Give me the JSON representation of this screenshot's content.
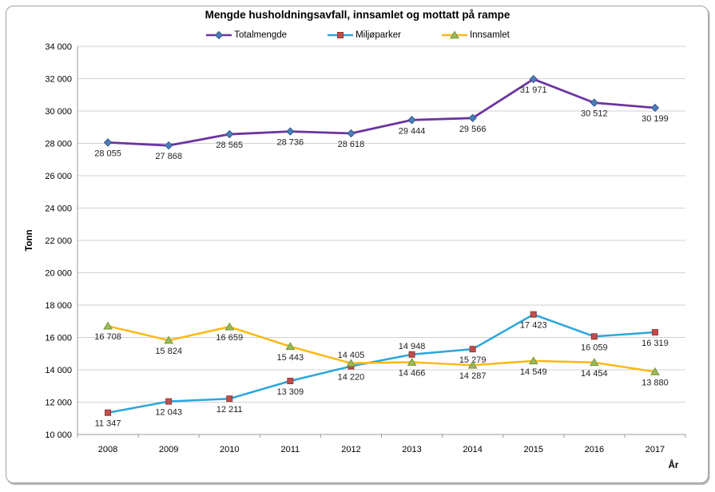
{
  "chart_data": {
    "type": "line",
    "title": "Mengde husholdningsavfall, innsamlet og mottatt på rampe",
    "ylabel": "Tonn",
    "xlabel": "År",
    "categories": [
      "2008",
      "2009",
      "2010",
      "2011",
      "2012",
      "2013",
      "2014",
      "2015",
      "2016",
      "2017"
    ],
    "ylim": [
      10000,
      34000
    ],
    "ytick_step": 2000,
    "grid": true,
    "legend_position": "top",
    "number_format": "space-thousands",
    "colors": {
      "gridline": "#d1d1d1",
      "axis": "#9b9b9b",
      "text": "#000000",
      "data_label": "#1f1f1f",
      "frame_border": "#a3a3a3"
    },
    "series": [
      {
        "name": "Totalmengde",
        "line_color": "#6B35A0",
        "marker": "diamond",
        "marker_color": "#4A7EBB",
        "marker_edge": "#38598C",
        "values": [
          28055,
          27868,
          28565,
          28736,
          28618,
          29444,
          29566,
          31971,
          30512,
          30199
        ],
        "label_side": [
          "below",
          "below",
          "below",
          "below",
          "below",
          "below",
          "below",
          "below",
          "below",
          "below"
        ]
      },
      {
        "name": "Miljøparker",
        "line_color": "#2BA6DE",
        "marker": "square",
        "marker_color": "#C0504D",
        "marker_edge": "#943634",
        "values": [
          11347,
          12043,
          12211,
          13309,
          14220,
          14948,
          15279,
          17423,
          16059,
          16319
        ],
        "label_side": [
          "below",
          "below",
          "below",
          "below",
          "below",
          "above",
          "below",
          "below",
          "below",
          "below"
        ]
      },
      {
        "name": "Innsamlet",
        "line_color": "#FCB813",
        "marker": "triangle",
        "marker_color": "#9BBB59",
        "marker_edge": "#76923C",
        "values": [
          16708,
          15824,
          16659,
          15443,
          14405,
          14466,
          14287,
          14549,
          14454,
          13880
        ],
        "label_side": [
          "below",
          "below",
          "below",
          "below",
          "above",
          "below",
          "below",
          "below",
          "below",
          "below"
        ]
      }
    ]
  }
}
